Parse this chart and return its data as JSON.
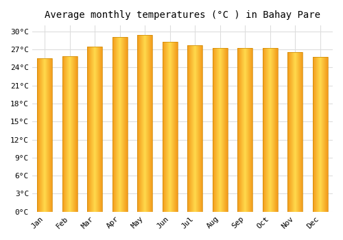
{
  "title": "Average monthly temperatures (°C ) in Bahay Pare",
  "months": [
    "Jan",
    "Feb",
    "Mar",
    "Apr",
    "May",
    "Jun",
    "Jul",
    "Aug",
    "Sep",
    "Oct",
    "Nov",
    "Dec"
  ],
  "values": [
    25.5,
    25.9,
    27.5,
    29.1,
    29.4,
    28.3,
    27.7,
    27.2,
    27.3,
    27.3,
    26.6,
    25.8
  ],
  "bar_color": "#FFA500",
  "bar_edge_color": "#CC8800",
  "background_color": "#FFFFFF",
  "plot_bg_color": "#FFFFFF",
  "grid_color": "#DDDDDD",
  "ylim": [
    0,
    31
  ],
  "ytick_step": 3,
  "title_fontsize": 10,
  "tick_fontsize": 8,
  "font_family": "monospace"
}
